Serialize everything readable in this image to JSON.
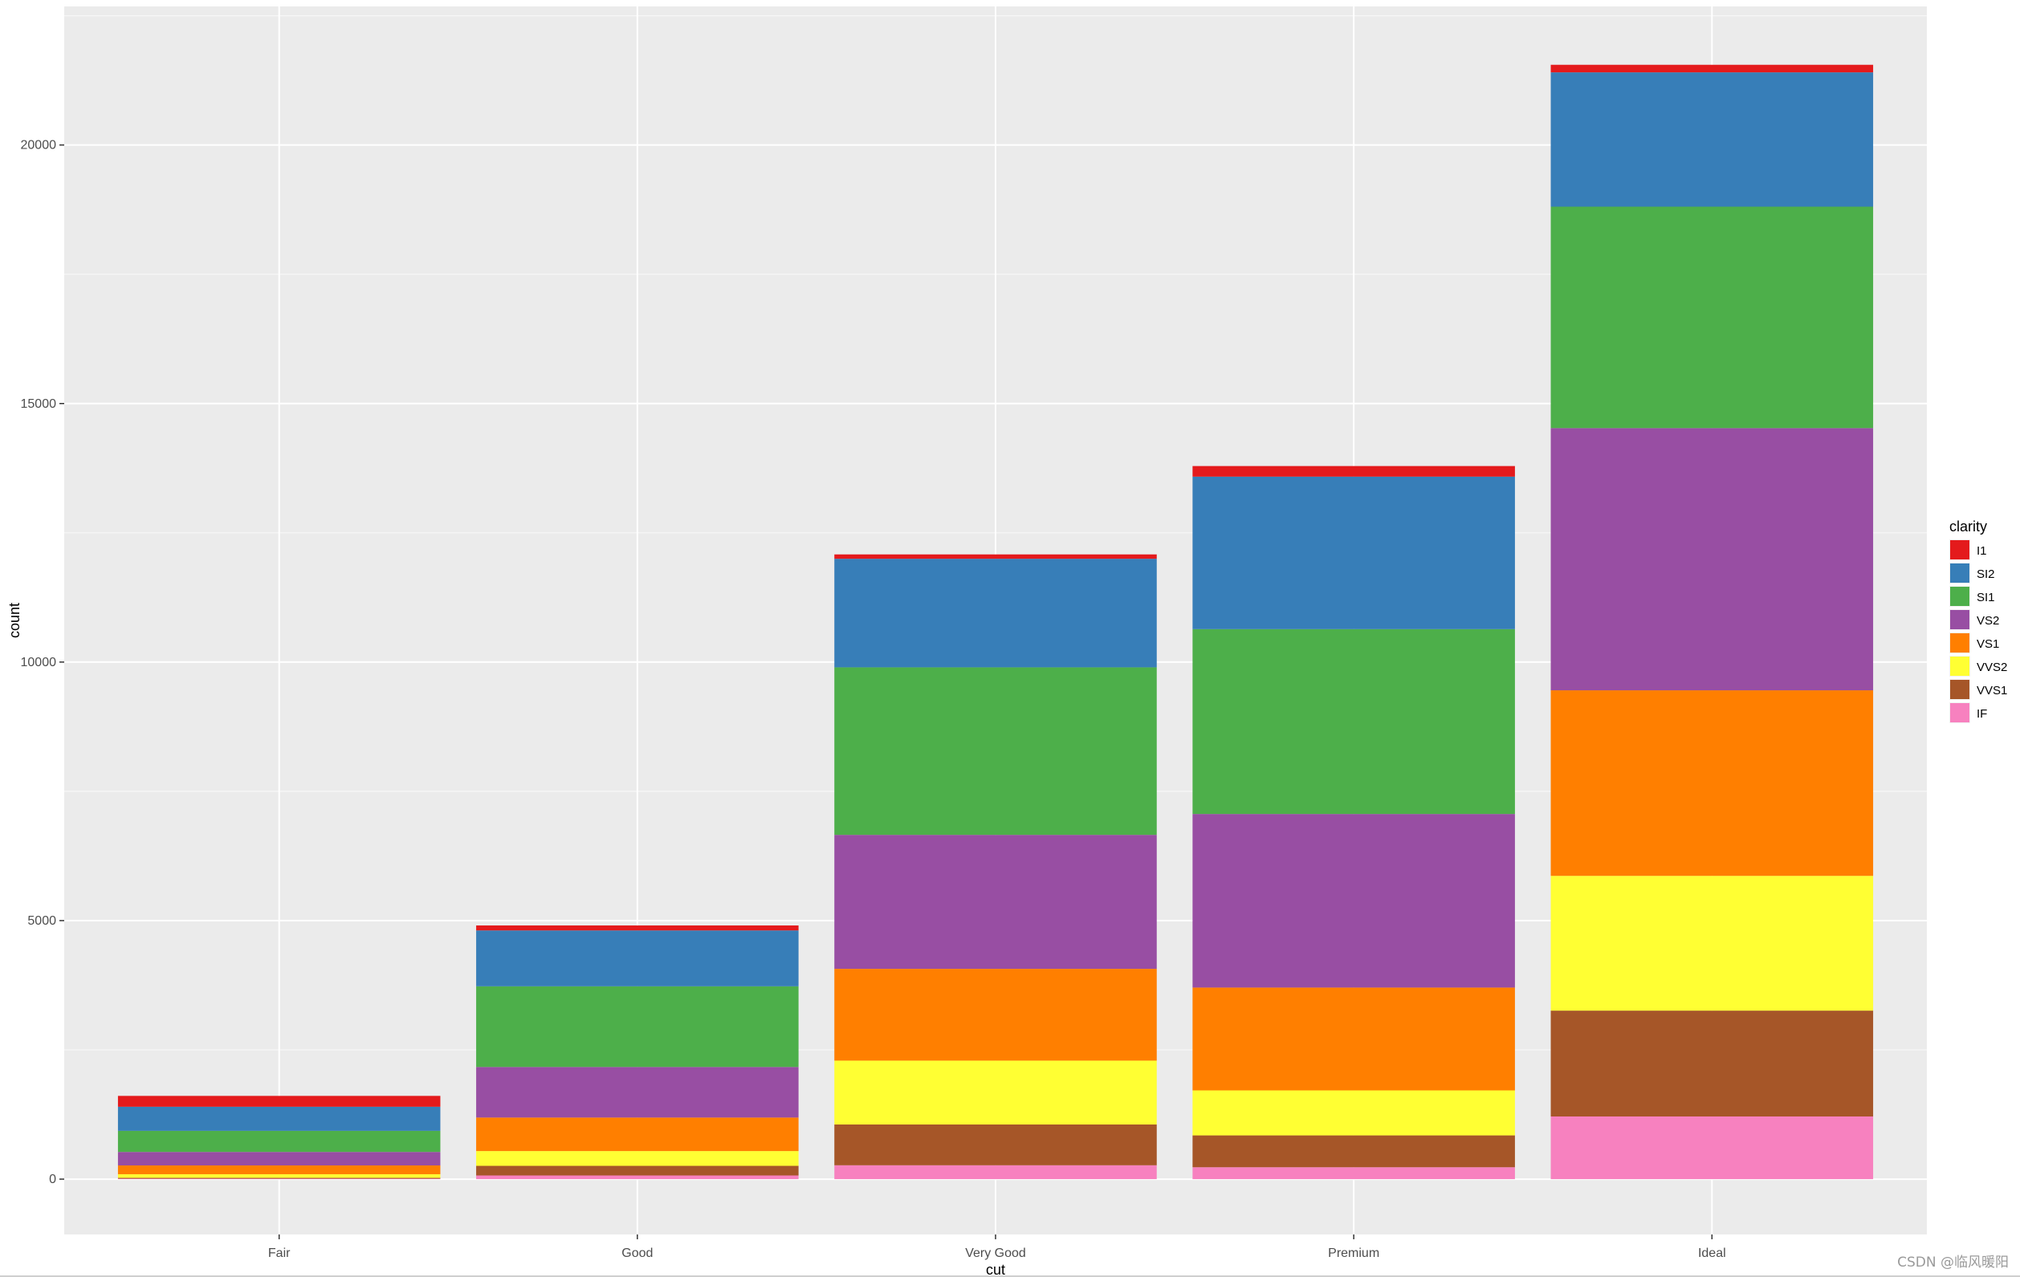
{
  "chart_data": {
    "type": "bar",
    "stacked": true,
    "title": "",
    "xlabel": "cut",
    "ylabel": "count",
    "ylim": [
      -1070,
      22680
    ],
    "yticks": [
      0,
      5000,
      10000,
      15000,
      20000
    ],
    "categories": [
      "Fair",
      "Good",
      "Very Good",
      "Premium",
      "Ideal"
    ],
    "legend": {
      "title": "clarity",
      "position": "right"
    },
    "series": [
      {
        "name": "I1",
        "color": "#E41A1C",
        "values": [
          210,
          96,
          84,
          205,
          146
        ]
      },
      {
        "name": "SI2",
        "color": "#377EB8",
        "values": [
          466,
          1081,
          2100,
          2949,
          2598
        ]
      },
      {
        "name": "SI1",
        "color": "#4DAF4A",
        "values": [
          408,
          1560,
          3240,
          3575,
          4282
        ]
      },
      {
        "name": "VS2",
        "color": "#984EA3",
        "values": [
          261,
          978,
          2591,
          3357,
          5071
        ]
      },
      {
        "name": "VS1",
        "color": "#FF7F00",
        "values": [
          170,
          648,
          1775,
          1989,
          3589
        ]
      },
      {
        "name": "VVS2",
        "color": "#FFFF33",
        "values": [
          69,
          286,
          1235,
          870,
          2606
        ]
      },
      {
        "name": "VVS1",
        "color": "#A65628",
        "values": [
          17,
          186,
          789,
          616,
          2047
        ]
      },
      {
        "name": "IF",
        "color": "#F781BF",
        "values": [
          9,
          71,
          268,
          230,
          1212
        ]
      }
    ]
  },
  "watermark": "CSDN @临风暖阳"
}
